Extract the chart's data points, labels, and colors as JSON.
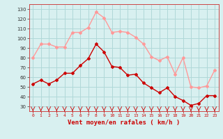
{
  "x": [
    0,
    1,
    2,
    3,
    4,
    5,
    6,
    7,
    8,
    9,
    10,
    11,
    12,
    13,
    14,
    15,
    16,
    17,
    18,
    19,
    20,
    21,
    22,
    23
  ],
  "vent_moyen": [
    53,
    57,
    53,
    57,
    64,
    64,
    72,
    79,
    94,
    86,
    71,
    70,
    62,
    63,
    54,
    49,
    44,
    49,
    40,
    36,
    31,
    33,
    41,
    41
  ],
  "en_rafales": [
    80,
    94,
    94,
    91,
    91,
    106,
    106,
    111,
    127,
    121,
    106,
    107,
    106,
    101,
    94,
    81,
    77,
    81,
    63,
    80,
    50,
    49,
    51,
    67
  ],
  "color_moyen": "#cc0000",
  "color_rafales": "#ff9999",
  "bg_color": "#d8f0f0",
  "grid_color": "#b0d8d8",
  "xlabel": "Vent moyen/en rafales ( km/h )",
  "ylim": [
    25,
    135
  ],
  "xlim": [
    -0.5,
    23.5
  ],
  "yticks": [
    30,
    40,
    50,
    60,
    70,
    80,
    90,
    100,
    110,
    120,
    130
  ],
  "xticks": [
    0,
    1,
    2,
    3,
    4,
    5,
    6,
    7,
    8,
    9,
    10,
    11,
    12,
    13,
    14,
    15,
    16,
    17,
    18,
    19,
    20,
    21,
    22,
    23
  ]
}
